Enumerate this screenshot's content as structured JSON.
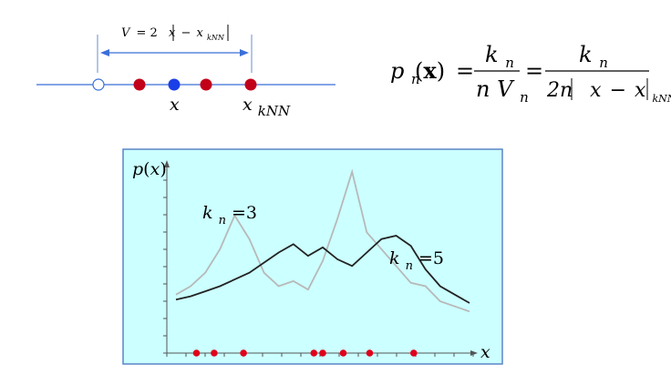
{
  "diagram": {
    "volume_label": {
      "lhs": "V",
      "eq": "= 2",
      "x": "x",
      "minus": "−",
      "xknn_base": "x",
      "xknn_sub": "kNN"
    },
    "point_label": "x",
    "neighbor_label": {
      "base": "x",
      "sub": "kNN"
    }
  },
  "formula": {
    "p": "p",
    "p_sub": "n",
    "arg": "x",
    "eq1": "=",
    "num1": "k",
    "num1_sub": "n",
    "den1_n": "n",
    "den1_V": "V",
    "den1_V_sub": "n",
    "eq2": "=",
    "num2": "k",
    "num2_sub": "n",
    "den2_2n": "2n",
    "den2_x": "x",
    "den2_minus": "−",
    "den2_xknn": "x",
    "den2_xknn_sub": "kNN"
  },
  "plot": {
    "ylabel": {
      "p": "p",
      "x": "x"
    },
    "xlabel": "x",
    "curve_k3_label": {
      "k": "k",
      "sub": "n",
      "val": "=3"
    },
    "curve_k5_label": {
      "k": "k",
      "sub": "n",
      "val": "=5"
    },
    "colors": {
      "background": "#ccffff",
      "curve_k3": "#b8b8b8",
      "curve_k5": "#222222",
      "sample": "#e0001b",
      "query": "#1a3fe6"
    }
  },
  "chart_data": {
    "type": "line",
    "samples": [
      0.07,
      0.13,
      0.23,
      0.47,
      0.5,
      0.57,
      0.66,
      0.81
    ],
    "xlim": [
      0,
      1
    ],
    "ylim": [
      0,
      1
    ],
    "grid": false,
    "series": [
      {
        "name": "k_n=3",
        "x": [
          0.0,
          0.05,
          0.1,
          0.15,
          0.2,
          0.25,
          0.3,
          0.35,
          0.4,
          0.45,
          0.5,
          0.55,
          0.6,
          0.65,
          0.7,
          0.75,
          0.8,
          0.85,
          0.9,
          0.95,
          1.0
        ],
        "y": [
          0.25,
          0.3,
          0.38,
          0.52,
          0.72,
          0.58,
          0.38,
          0.3,
          0.33,
          0.28,
          0.45,
          0.7,
          0.98,
          0.62,
          0.52,
          0.42,
          0.32,
          0.3,
          0.21,
          0.18,
          0.15
        ]
      },
      {
        "name": "k_n=5",
        "x": [
          0.0,
          0.05,
          0.1,
          0.15,
          0.2,
          0.25,
          0.3,
          0.35,
          0.4,
          0.45,
          0.5,
          0.55,
          0.6,
          0.65,
          0.7,
          0.75,
          0.8,
          0.85,
          0.9,
          0.95,
          1.0
        ],
        "y": [
          0.22,
          0.24,
          0.27,
          0.3,
          0.34,
          0.38,
          0.44,
          0.5,
          0.55,
          0.48,
          0.53,
          0.46,
          0.42,
          0.5,
          0.58,
          0.6,
          0.54,
          0.4,
          0.3,
          0.25,
          0.2
        ]
      }
    ]
  }
}
